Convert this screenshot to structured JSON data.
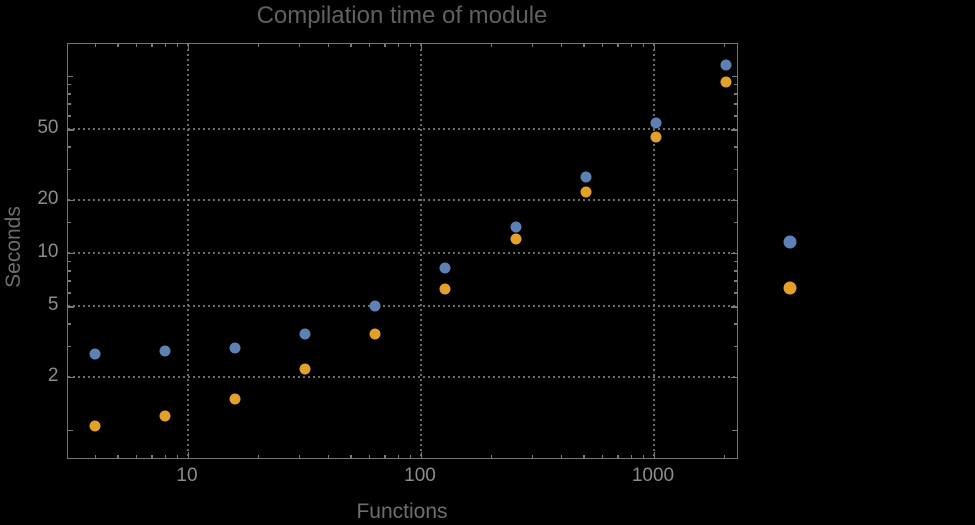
{
  "chart_data": {
    "type": "scatter",
    "title": "Compilation time of module",
    "xlabel": "Functions",
    "ylabel": "Seconds",
    "x_scale": "log",
    "y_scale": "log",
    "x_range": [
      3.05,
      2270
    ],
    "y_range": [
      0.7,
      152
    ],
    "grid": "dotted at labeled major ticks",
    "legend_position": "right-outside",
    "x": [
      4,
      8,
      16,
      32,
      64,
      128,
      256,
      512,
      1024,
      2048
    ],
    "series": [
      {
        "name": "series-blue",
        "color": "#5E81B5",
        "values": [
          2.7,
          2.8,
          2.9,
          3.5,
          5.0,
          8.2,
          14,
          27,
          54,
          115
        ]
      },
      {
        "name": "series-orange",
        "color": "#E3A02A",
        "values": [
          1.05,
          1.2,
          1.5,
          2.2,
          3.5,
          6.3,
          12,
          22,
          45,
          93
        ]
      }
    ],
    "x_tick_values": [
      10,
      100,
      1000
    ],
    "x_tick_labels": [
      "10",
      "100",
      "1000"
    ],
    "x_minor_tick_values": [
      4,
      5,
      6,
      7,
      8,
      9,
      20,
      30,
      40,
      50,
      60,
      70,
      80,
      90,
      200,
      300,
      400,
      500,
      600,
      700,
      800,
      900,
      2000
    ],
    "y_tick_values": [
      2,
      5,
      10,
      20,
      50
    ],
    "y_tick_labels": [
      "2",
      "5",
      "10",
      "20",
      "50"
    ],
    "y_medium_tick_values": [
      1,
      100
    ],
    "y_minor_tick_values": [
      3,
      4,
      6,
      7,
      8,
      9,
      15,
      30,
      40,
      60,
      70,
      80,
      90
    ]
  },
  "legend": {
    "markers": [
      {
        "name": "legend-marker-blue",
        "color": "#5E81B5"
      },
      {
        "name": "legend-marker-orange",
        "color": "#E3A02A"
      }
    ]
  },
  "colors": {
    "background": "#000000",
    "frame": "#757575",
    "gridline": "#6C6C6C",
    "tick": "#7A7A7A",
    "tick_label": "#8C8C8C",
    "axis_label": "#6E6E6E",
    "title": "#606060"
  }
}
